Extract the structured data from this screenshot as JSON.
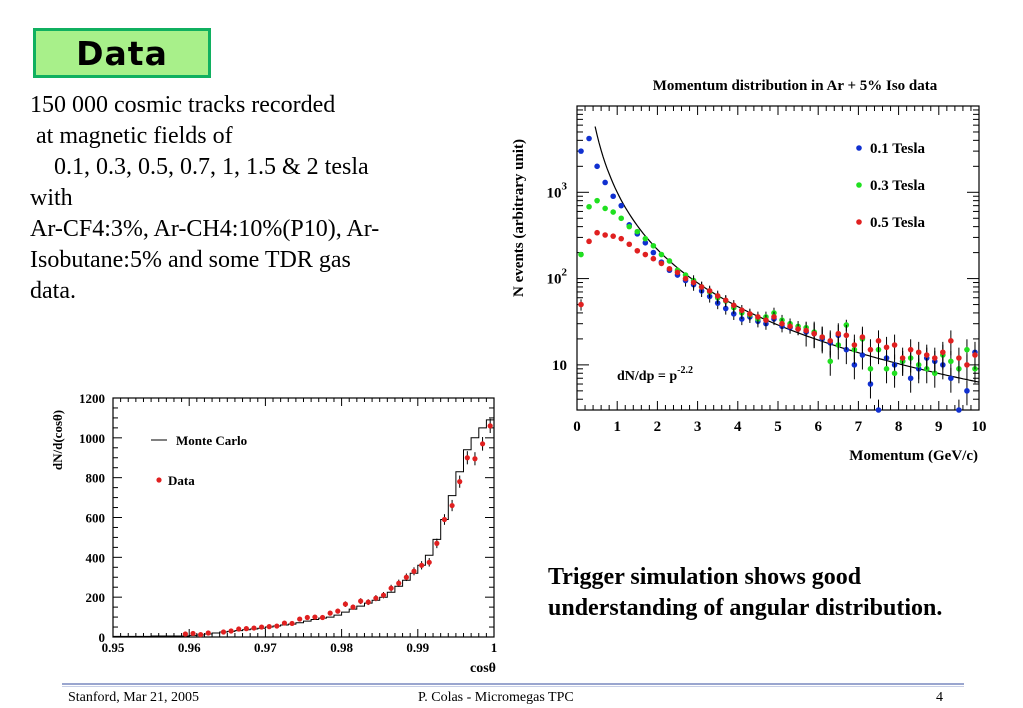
{
  "slide": {
    "title": "Data",
    "intro_lines": [
      "150 000 cosmic tracks recorded",
      " at magnetic fields of",
      "    0.1, 0.3, 0.5, 0.7, 1, 1.5 & 2 tesla",
      "with",
      "Ar-CF4:3%, Ar-CH4:10%(P10), Ar-",
      "Isobutane:5% and some TDR gas",
      "data."
    ],
    "note": "Trigger simulation shows good understanding of angular distribution.",
    "footer": {
      "left": "Stanford,  Mar 21, 2005",
      "center": "P. Colas  -  Micromegas TPC",
      "page": "4"
    }
  },
  "chart_data": [
    {
      "type": "scatter",
      "title": "Momentum distribution in Ar + 5% Iso data",
      "xlabel": "Momentum (GeV/c)",
      "ylabel": "N events (arbitrary unit)",
      "xlim": [
        0,
        10
      ],
      "ylim": [
        3,
        10000
      ],
      "yscale": "log",
      "xticks": [
        "0",
        "1",
        "2",
        "3",
        "4",
        "5",
        "6",
        "7",
        "8",
        "9",
        "10"
      ],
      "yticks": [
        {
          "value": 1000,
          "base": "10",
          "exp": "3"
        },
        {
          "value": 100,
          "base": "10",
          "exp": "2"
        },
        {
          "value": 10,
          "base": "10",
          "exp": ""
        }
      ],
      "legend_position": "top-right",
      "annotation": {
        "base": "dN/dp = p",
        "exp": "-2.2"
      },
      "fit_curve": {
        "formula": "N = 1000 * p^-2.2",
        "color": "#000000"
      },
      "series": [
        {
          "name": "0.1 Tesla",
          "color": "#1030d0",
          "x": [
            0.1,
            0.3,
            0.5,
            0.7,
            0.9,
            1.1,
            1.3,
            1.5,
            1.7,
            1.9,
            2.1,
            2.3,
            2.5,
            2.7,
            2.9,
            3.1,
            3.3,
            3.5,
            3.7,
            3.9,
            4.1,
            4.3,
            4.5,
            4.7,
            4.9,
            5.1,
            5.3,
            5.5,
            5.7,
            5.9,
            6.1,
            6.3,
            6.5,
            6.7,
            6.9,
            7.1,
            7.3,
            7.5,
            7.7,
            7.9,
            8.1,
            8.3,
            8.5,
            8.7,
            8.9,
            9.1,
            9.3,
            9.5,
            9.7,
            9.9
          ],
          "y": [
            3000,
            4200,
            2000,
            1300,
            900,
            700,
            420,
            330,
            260,
            200,
            155,
            125,
            110,
            95,
            85,
            72,
            62,
            52,
            45,
            39,
            34,
            36,
            32,
            30,
            34,
            28,
            27,
            26,
            24,
            23,
            20,
            18,
            22,
            15,
            10,
            13,
            6,
            3,
            12,
            10,
            11,
            7,
            9,
            12,
            11,
            10,
            7,
            3,
            5,
            14
          ]
        },
        {
          "name": "0.3 Tesla",
          "color": "#20e020",
          "x": [
            0.1,
            0.3,
            0.5,
            0.7,
            0.9,
            1.1,
            1.3,
            1.5,
            1.7,
            1.9,
            2.1,
            2.3,
            2.5,
            2.7,
            2.9,
            3.1,
            3.3,
            3.5,
            3.7,
            3.9,
            4.1,
            4.3,
            4.5,
            4.7,
            4.9,
            5.1,
            5.3,
            5.5,
            5.7,
            5.9,
            6.1,
            6.3,
            6.5,
            6.7,
            6.9,
            7.1,
            7.3,
            7.5,
            7.7,
            7.9,
            8.1,
            8.3,
            8.5,
            8.7,
            8.9,
            9.1,
            9.3,
            9.5,
            9.7,
            9.9
          ],
          "y": [
            190,
            680,
            800,
            650,
            590,
            500,
            400,
            350,
            290,
            240,
            190,
            160,
            125,
            110,
            95,
            80,
            70,
            60,
            55,
            46,
            40,
            38,
            34,
            36,
            40,
            33,
            30,
            28,
            27,
            24,
            21,
            11,
            17,
            29,
            15,
            20,
            9,
            15,
            9,
            8,
            11,
            12,
            10,
            9,
            8,
            13,
            11,
            9,
            15,
            9
          ]
        },
        {
          "name": "0.5 Tesla",
          "color": "#e02020",
          "x": [
            0.1,
            0.3,
            0.5,
            0.7,
            0.9,
            1.1,
            1.3,
            1.5,
            1.7,
            1.9,
            2.1,
            2.3,
            2.5,
            2.7,
            2.9,
            3.1,
            3.3,
            3.5,
            3.7,
            3.9,
            4.1,
            4.3,
            4.5,
            4.7,
            4.9,
            5.1,
            5.3,
            5.5,
            5.7,
            5.9,
            6.1,
            6.3,
            6.5,
            6.7,
            6.9,
            7.1,
            7.3,
            7.5,
            7.7,
            7.9,
            8.1,
            8.3,
            8.5,
            8.7,
            8.9,
            9.1,
            9.3,
            9.5,
            9.7,
            9.9
          ],
          "y": [
            50,
            270,
            340,
            320,
            310,
            290,
            250,
            210,
            190,
            170,
            150,
            130,
            118,
            100,
            90,
            80,
            72,
            63,
            56,
            49,
            43,
            39,
            36,
            33,
            36,
            30,
            28,
            26,
            25,
            23,
            21,
            19,
            23,
            22,
            17,
            21,
            15,
            19,
            16,
            17,
            12,
            15,
            14,
            13,
            12,
            14,
            19,
            12,
            10,
            13
          ]
        }
      ]
    },
    {
      "type": "scatter",
      "title": "",
      "xlabel": "cosθ",
      "ylabel": "dN/d(cosθ)",
      "xlim": [
        0.95,
        1.0
      ],
      "ylim": [
        0,
        1200
      ],
      "xticks": [
        "0.95",
        "0.96",
        "0.97",
        "0.98",
        "0.99",
        "1"
      ],
      "yticks": [
        "0",
        "200",
        "400",
        "600",
        "800",
        "1000",
        "1200"
      ],
      "legend_position": "top-left",
      "series": [
        {
          "name": "Monte Carlo",
          "style": "step",
          "color": "#000000",
          "x": [
            0.95,
            0.955,
            0.96,
            0.961,
            0.962,
            0.963,
            0.964,
            0.965,
            0.966,
            0.967,
            0.968,
            0.969,
            0.97,
            0.971,
            0.972,
            0.973,
            0.974,
            0.975,
            0.976,
            0.977,
            0.978,
            0.979,
            0.98,
            0.981,
            0.982,
            0.983,
            0.984,
            0.985,
            0.986,
            0.987,
            0.988,
            0.989,
            0.99,
            0.991,
            0.992,
            0.993,
            0.994,
            0.995,
            0.996,
            0.997,
            0.998,
            0.999,
            1.0
          ],
          "y": [
            3,
            5,
            8,
            10,
            15,
            20,
            25,
            28,
            32,
            36,
            40,
            44,
            50,
            55,
            60,
            65,
            72,
            80,
            88,
            95,
            100,
            110,
            125,
            140,
            155,
            170,
            185,
            200,
            225,
            255,
            285,
            320,
            360,
            410,
            490,
            590,
            710,
            830,
            940,
            1000,
            1050,
            1090,
            1090
          ]
        },
        {
          "name": "Data",
          "color": "#e02020",
          "x": [
            0.9595,
            0.9605,
            0.9615,
            0.9625,
            0.9645,
            0.9655,
            0.9665,
            0.9675,
            0.9685,
            0.9695,
            0.9705,
            0.9715,
            0.9725,
            0.9735,
            0.9745,
            0.9755,
            0.9765,
            0.9775,
            0.9785,
            0.9795,
            0.9805,
            0.9815,
            0.9825,
            0.9835,
            0.9845,
            0.9855,
            0.9865,
            0.9875,
            0.9885,
            0.9895,
            0.9905,
            0.9915,
            0.9925,
            0.9935,
            0.9945,
            0.9955,
            0.9965,
            0.9975,
            0.9985,
            0.9995
          ],
          "y": [
            15,
            18,
            12,
            20,
            25,
            30,
            40,
            42,
            45,
            50,
            52,
            55,
            70,
            68,
            90,
            98,
            100,
            98,
            120,
            130,
            165,
            150,
            180,
            175,
            195,
            210,
            245,
            270,
            300,
            330,
            360,
            375,
            470,
            590,
            660,
            780,
            900,
            895,
            970,
            1060
          ]
        }
      ]
    }
  ]
}
